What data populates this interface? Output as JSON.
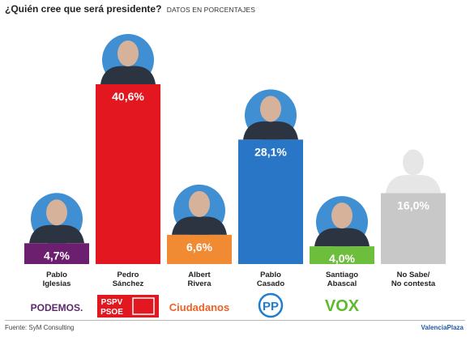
{
  "title": "¿Quién cree que será presidente?",
  "subtitle": "DATOS EN PORCENTAJES",
  "source": "Fuente: SyM Consulting",
  "brand": "ValenciaPlaza",
  "chart_data": {
    "type": "bar",
    "categories": [
      [
        "Pablo",
        "Iglesias"
      ],
      [
        "Pedro",
        "Sánchez"
      ],
      [
        "Albert",
        "Rivera"
      ],
      [
        "Pablo",
        "Casado"
      ],
      [
        "Santiago",
        "Abascal"
      ],
      [
        "No Sabe/",
        "No contesta"
      ]
    ],
    "values": [
      4.7,
      40.6,
      6.6,
      28.1,
      4.0,
      16.0
    ],
    "value_labels": [
      "4,7%",
      "40,6%",
      "6,6%",
      "28,1%",
      "4,0%",
      "16,0%"
    ],
    "colors": [
      "#6b1f6e",
      "#e2171f",
      "#f08a33",
      "#2a76c6",
      "#6ebe3e",
      "#c8c8c8"
    ],
    "party_logos": [
      {
        "text": "PODEMOS.",
        "color": "#5b2a6b"
      },
      {
        "text": "PSPV PSOE",
        "color": "#e2171f"
      },
      {
        "text": "Ciudadanos",
        "color": "#f06125"
      },
      {
        "text": "PP",
        "color": "#1f7ed0"
      },
      {
        "text": "VOX",
        "color": "#5bbb2d"
      },
      {
        "text": "",
        "color": ""
      }
    ],
    "ylim": [
      0,
      45
    ],
    "grid": false
  }
}
